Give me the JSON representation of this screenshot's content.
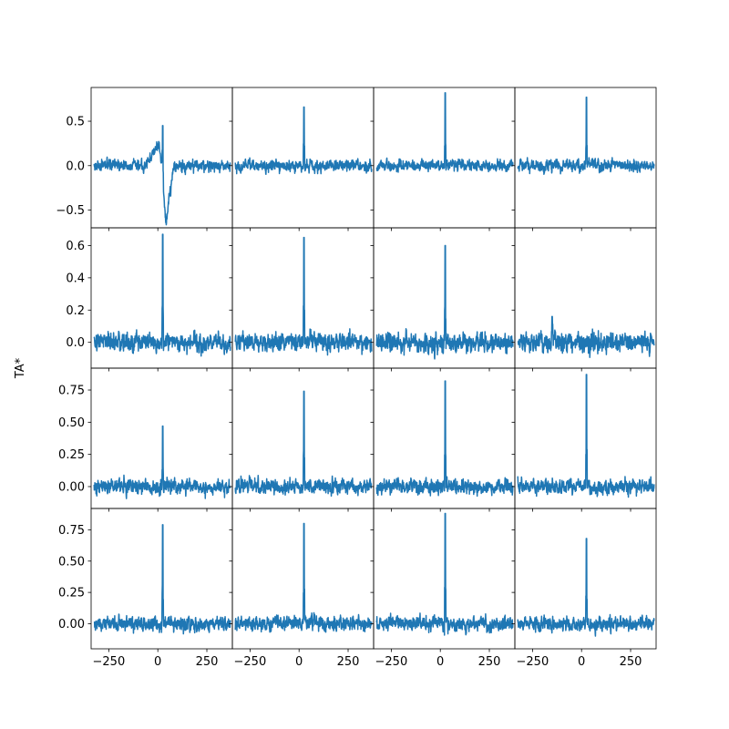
{
  "chart_data": {
    "type": "line",
    "layout": {
      "rows": 4,
      "cols": 4,
      "sharex": true,
      "sharey_per_row": true
    },
    "title": "",
    "ylabel": "TA*",
    "xlabel": "",
    "xlim": [
      -340,
      380
    ],
    "xticks": [
      -250,
      0,
      250
    ],
    "xtick_labels": [
      "−250",
      "0",
      "250"
    ],
    "series_color": "#1f77b4",
    "x_range": [
      -325,
      370
    ],
    "rows": [
      {
        "ylim": [
          -0.7,
          0.88
        ],
        "yticks": [
          -0.5,
          0.0,
          0.5
        ],
        "ytick_labels": [
          "−0.5",
          "0.0",
          "0.5"
        ]
      },
      {
        "ylim": [
          -0.16,
          0.71
        ],
        "yticks": [
          0.0,
          0.2,
          0.4,
          0.6
        ],
        "ytick_labels": [
          "0.0",
          "0.2",
          "0.4",
          "0.6"
        ]
      },
      {
        "ylim": [
          -0.17,
          0.92
        ],
        "yticks": [
          0.0,
          0.25,
          0.5,
          0.75
        ],
        "ytick_labels": [
          "0.00",
          "0.25",
          "0.50",
          "0.75"
        ]
      },
      {
        "ylim": [
          -0.2,
          0.92
        ],
        "yticks": [
          0.0,
          0.25,
          0.5,
          0.75
        ],
        "ytick_labels": [
          "0.00",
          "0.25",
          "0.50",
          "0.75"
        ]
      }
    ],
    "panels": [
      {
        "row": 0,
        "col": 0,
        "peak_x": 25,
        "peak": 0.45,
        "noise": 0.05,
        "feature": "absorption",
        "trough": -0.65
      },
      {
        "row": 0,
        "col": 1,
        "peak_x": 25,
        "peak": 0.66,
        "noise": 0.05
      },
      {
        "row": 0,
        "col": 2,
        "peak_x": 25,
        "peak": 0.82,
        "noise": 0.05
      },
      {
        "row": 0,
        "col": 3,
        "peak_x": 25,
        "peak": 0.77,
        "noise": 0.05
      },
      {
        "row": 1,
        "col": 0,
        "peak_x": 25,
        "peak": 0.67,
        "noise": 0.045
      },
      {
        "row": 1,
        "col": 1,
        "peak_x": 25,
        "peak": 0.65,
        "noise": 0.045
      },
      {
        "row": 1,
        "col": 2,
        "peak_x": 25,
        "peak": 0.6,
        "noise": 0.045
      },
      {
        "row": 1,
        "col": 3,
        "peak_x": -150,
        "peak": 0.16,
        "noise": 0.045
      },
      {
        "row": 2,
        "col": 0,
        "peak_x": 25,
        "peak": 0.47,
        "noise": 0.045
      },
      {
        "row": 2,
        "col": 1,
        "peak_x": 25,
        "peak": 0.74,
        "noise": 0.045
      },
      {
        "row": 2,
        "col": 2,
        "peak_x": 25,
        "peak": 0.82,
        "noise": 0.045
      },
      {
        "row": 2,
        "col": 3,
        "peak_x": 25,
        "peak": 0.87,
        "noise": 0.045
      },
      {
        "row": 3,
        "col": 0,
        "peak_x": 25,
        "peak": 0.79,
        "noise": 0.045
      },
      {
        "row": 3,
        "col": 1,
        "peak_x": 25,
        "peak": 0.8,
        "noise": 0.045
      },
      {
        "row": 3,
        "col": 2,
        "peak_x": 25,
        "peak": 0.88,
        "noise": 0.045
      },
      {
        "row": 3,
        "col": 3,
        "peak_x": 25,
        "peak": 0.68,
        "noise": 0.045
      }
    ]
  }
}
